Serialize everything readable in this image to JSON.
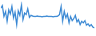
{
  "chart_data": {
    "type": "line",
    "x": [
      0,
      1,
      2,
      3,
      4,
      5,
      6,
      7,
      8,
      9,
      10,
      11,
      12,
      13,
      14,
      15,
      16,
      17,
      18,
      19,
      20,
      21,
      22,
      23,
      24,
      25,
      26,
      27,
      28,
      29,
      30,
      31,
      32,
      33,
      34,
      35,
      36,
      37,
      38,
      39,
      40,
      41,
      42,
      43,
      44,
      45,
      46,
      47,
      48,
      49,
      50,
      51,
      52,
      53,
      54,
      55,
      56,
      57,
      58,
      59
    ],
    "values": [
      80,
      88,
      55,
      70,
      40,
      75,
      62,
      85,
      50,
      68,
      30,
      72,
      58,
      90,
      45,
      65,
      60,
      78,
      52,
      58,
      56,
      55,
      55,
      56,
      55,
      55,
      54,
      55,
      55,
      56,
      55,
      55,
      55,
      54,
      55,
      55,
      56,
      60,
      85,
      40,
      70,
      50,
      62,
      35,
      55,
      42,
      48,
      58,
      38,
      45,
      30,
      40,
      35,
      42,
      28,
      32,
      25,
      30,
      22,
      20
    ],
    "color": "#3d8ad4",
    "xlim": [
      0,
      59
    ],
    "ylim": [
      0,
      100
    ],
    "grid": false,
    "tick_labels": false
  }
}
